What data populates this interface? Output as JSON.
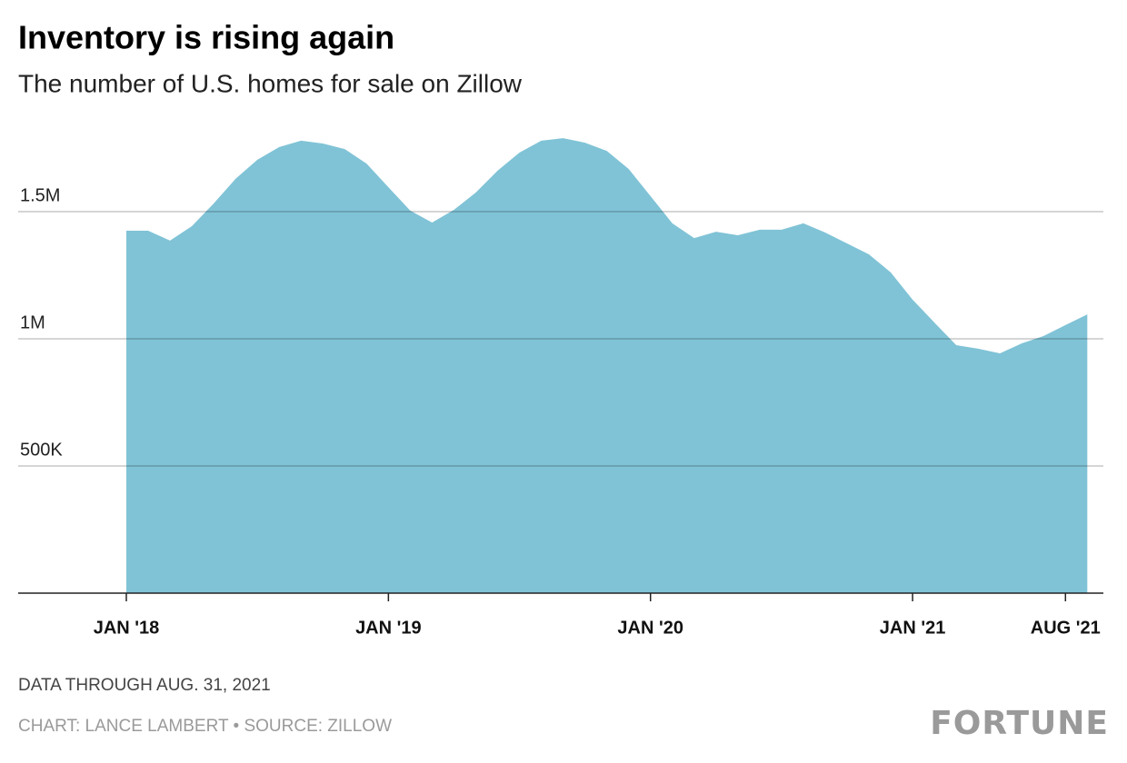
{
  "chart_data": {
    "type": "area",
    "title": "Inventory is rising again",
    "subtitle": "The number of U.S. homes for sale on Zillow",
    "categories": [
      "JAN '18",
      null,
      null,
      null,
      null,
      null,
      null,
      null,
      null,
      null,
      null,
      null,
      "JAN '19",
      null,
      null,
      null,
      null,
      null,
      null,
      null,
      null,
      null,
      null,
      null,
      "JAN '20",
      null,
      null,
      null,
      null,
      null,
      null,
      null,
      null,
      null,
      null,
      null,
      "JAN '21",
      null,
      null,
      null,
      null,
      null,
      null,
      "AUG '21",
      null
    ],
    "values": [
      1425000,
      1425000,
      1386000,
      1443000,
      1532000,
      1629000,
      1704000,
      1754000,
      1779000,
      1768000,
      1746000,
      1689000,
      1596000,
      1504000,
      1457000,
      1507000,
      1575000,
      1661000,
      1732000,
      1779000,
      1789000,
      1771000,
      1739000,
      1668000,
      1561000,
      1454000,
      1396000,
      1421000,
      1407000,
      1429000,
      1429000,
      1454000,
      1418000,
      1375000,
      1332000,
      1261000,
      1154000,
      1064000,
      975000,
      961000,
      943000,
      982000,
      1011000,
      1054000,
      1096000
    ],
    "color": "#80c3d6",
    "ylim": [
      0,
      1900000
    ],
    "yticks": [
      {
        "value": 500000,
        "label": "500K"
      },
      {
        "value": 1000000,
        "label": "1M"
      },
      {
        "value": 1500000,
        "label": "1.5M"
      }
    ],
    "grid": true,
    "note": "DATA THROUGH AUG. 31, 2021",
    "source": "CHART: LANCE LAMBERT • SOURCE: ZILLOW",
    "brand": "FORTUNE"
  }
}
